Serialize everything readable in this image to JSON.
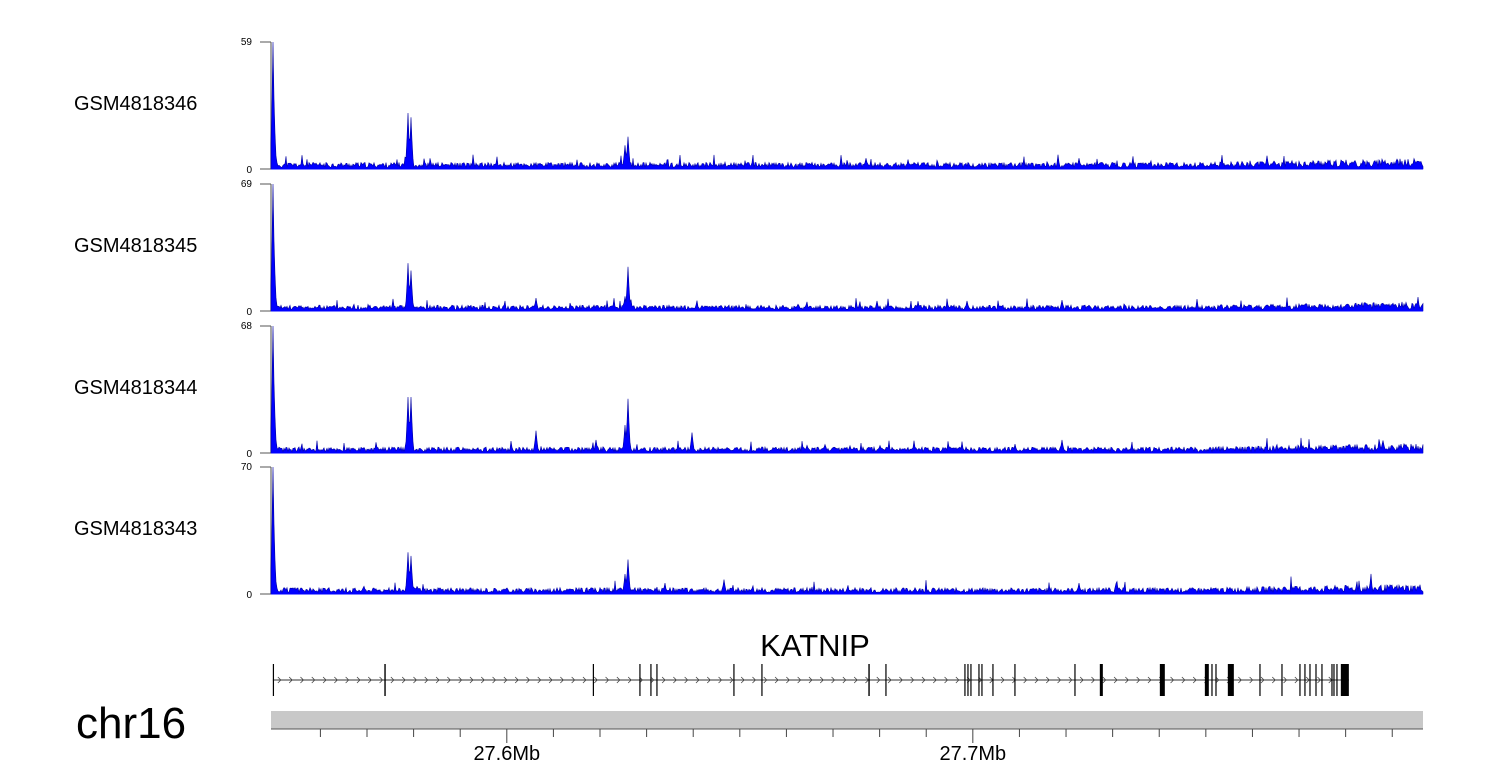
{
  "chart_data": {
    "type": "area",
    "chromosome": "chr16",
    "xrange_mb": [
      27.5494,
      27.7966
    ],
    "x_ticks_mb": [
      27.56,
      27.57,
      27.58,
      27.59,
      27.6,
      27.61,
      27.62,
      27.63,
      27.64,
      27.65,
      27.66,
      27.67,
      27.68,
      27.69,
      27.7,
      27.71,
      27.72,
      27.73,
      27.74,
      27.75,
      27.76,
      27.77,
      27.78,
      27.79
    ],
    "x_tick_labels": [
      {
        "mb": 27.6,
        "label": "27.6Mb"
      },
      {
        "mb": 27.7,
        "label": "27.7Mb"
      }
    ],
    "color": "#0000ff",
    "tracks": [
      {
        "name": "GSM4818346",
        "ymax": 59,
        "ymax_label": "59",
        "ymin_label": "0",
        "baseline": 2.2,
        "seed": 11,
        "peaks": [
          [
            27.5498,
            59
          ],
          [
            27.5501,
            30
          ],
          [
            27.5788,
            26
          ],
          [
            27.5795,
            24
          ],
          [
            27.6253,
            11
          ],
          [
            27.6259,
            15
          ],
          [
            27.7228,
            5
          ],
          [
            27.7885,
            4
          ]
        ]
      },
      {
        "name": "GSM4818345",
        "ymax": 69,
        "ymax_label": "69",
        "ymin_label": "0",
        "baseline": 2.3,
        "seed": 23,
        "peaks": [
          [
            27.5498,
            69
          ],
          [
            27.5501,
            36
          ],
          [
            27.5788,
            26
          ],
          [
            27.5795,
            22
          ],
          [
            27.6062,
            7
          ],
          [
            27.6253,
            8
          ],
          [
            27.6259,
            24
          ],
          [
            27.7192,
            6
          ]
        ]
      },
      {
        "name": "GSM4818344",
        "ymax": 68,
        "ymax_label": "68",
        "ymin_label": "0",
        "baseline": 2.3,
        "seed": 37,
        "peaks": [
          [
            27.5498,
            68
          ],
          [
            27.5501,
            35
          ],
          [
            27.5788,
            30
          ],
          [
            27.5795,
            30
          ],
          [
            27.6062,
            12
          ],
          [
            27.6191,
            7
          ],
          [
            27.6253,
            15
          ],
          [
            27.6259,
            29
          ],
          [
            27.6398,
            11
          ],
          [
            27.7192,
            7
          ]
        ]
      },
      {
        "name": "GSM4818343",
        "ymax": 70,
        "ymax_label": "70",
        "ymin_label": "0",
        "baseline": 2.5,
        "seed": 51,
        "peaks": [
          [
            27.5498,
            70
          ],
          [
            27.5501,
            34
          ],
          [
            27.5788,
            23
          ],
          [
            27.5795,
            21
          ],
          [
            27.6253,
            11
          ],
          [
            27.6259,
            19
          ],
          [
            27.6465,
            8
          ],
          [
            27.7228,
            6
          ]
        ]
      }
    ],
    "gene": {
      "name": "KATNIP",
      "strand": "+",
      "start_mb": 27.5498,
      "end_mb": 27.7807,
      "exons_mb": [
        [
          27.54979,
          27.54999
        ],
        [
          27.57372,
          27.57402
        ],
        [
          27.61845,
          27.61865
        ],
        [
          27.62844,
          27.62864
        ],
        [
          27.6308,
          27.631
        ],
        [
          27.63209,
          27.63229
        ],
        [
          27.64861,
          27.64881
        ],
        [
          27.65462,
          27.65482
        ],
        [
          27.67758,
          27.67788
        ],
        [
          27.68123,
          27.68143
        ],
        [
          27.69818,
          27.69838
        ],
        [
          27.69883,
          27.69903
        ],
        [
          27.69947,
          27.69967
        ],
        [
          27.70119,
          27.70139
        ],
        [
          27.70183,
          27.70203
        ],
        [
          27.70419,
          27.70439
        ],
        [
          27.70891,
          27.70911
        ],
        [
          27.72179,
          27.72199
        ],
        [
          27.72725,
          27.7279
        ],
        [
          27.74013,
          27.7412
        ],
        [
          27.74979,
          27.75064
        ],
        [
          27.75119,
          27.75139
        ],
        [
          27.75205,
          27.75225
        ],
        [
          27.75472,
          27.75601
        ],
        [
          27.76149,
          27.76169
        ],
        [
          27.76621,
          27.76641
        ],
        [
          27.77007,
          27.77027
        ],
        [
          27.77114,
          27.77134
        ],
        [
          27.77222,
          27.77242
        ],
        [
          27.77351,
          27.77371
        ],
        [
          27.77479,
          27.77499
        ],
        [
          27.77694,
          27.77714
        ],
        [
          27.77737,
          27.77757
        ],
        [
          27.77801,
          27.77821
        ],
        [
          27.77897,
          27.78069
        ]
      ]
    }
  }
}
